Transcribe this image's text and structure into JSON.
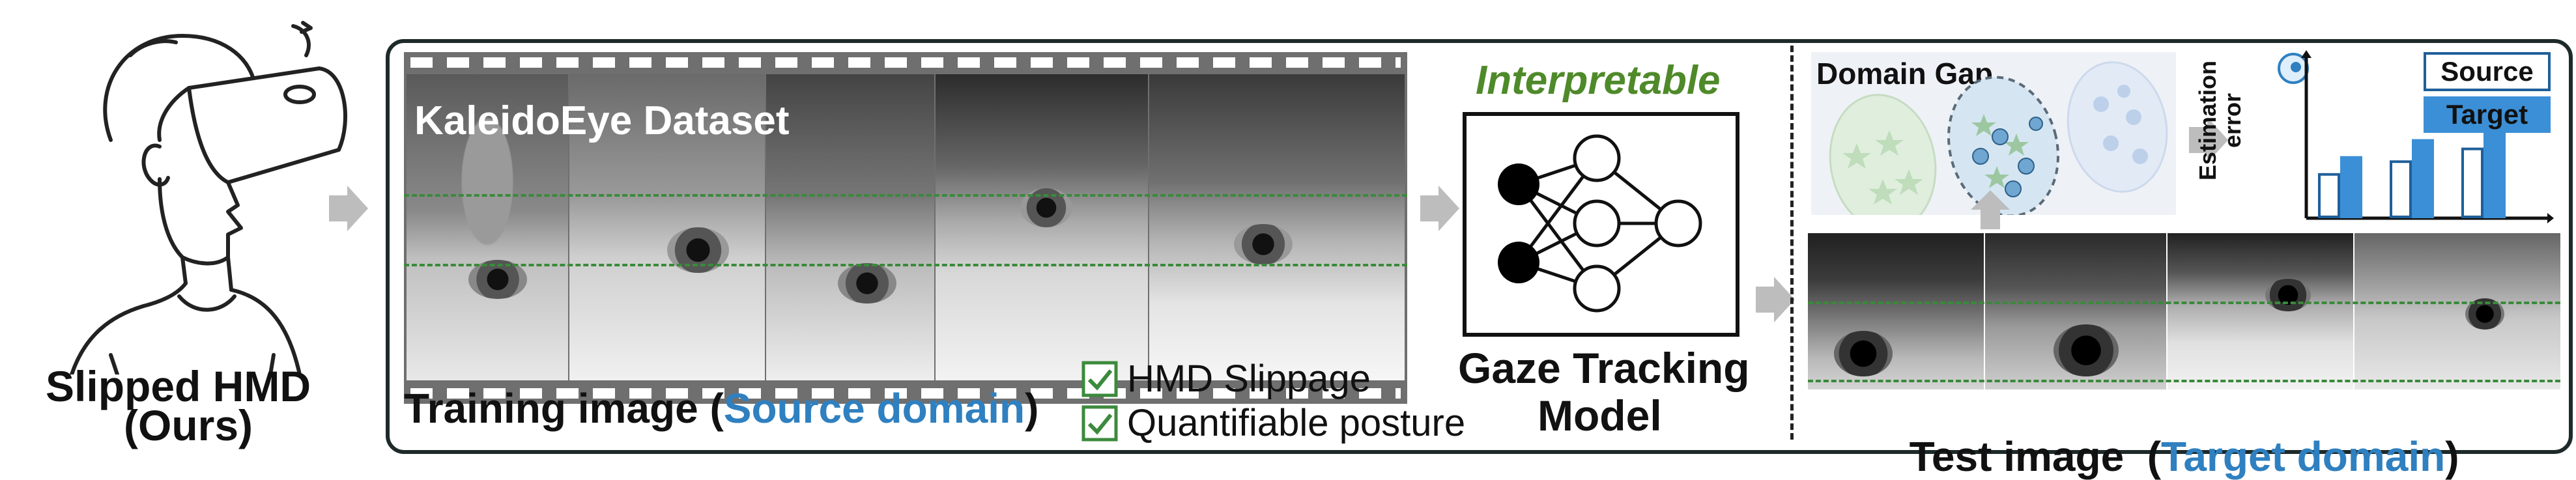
{
  "left": {
    "title_line1": "Slipped HMD",
    "title_line2": "(Ours)",
    "illustration": "person-wearing-vr-headset"
  },
  "training": {
    "dataset_label": "KaleidoEye Dataset",
    "caption_prefix": "Training image (",
    "caption_domain": "Source domain",
    "caption_suffix": ")",
    "checklist": [
      {
        "label": "HMD Slippage",
        "icon": "checkbox-checked-icon"
      },
      {
        "label": "Quantifiable posture",
        "icon": "checkbox-checked-icon"
      }
    ]
  },
  "model": {
    "interpretable": "Interpretable",
    "title_line1": "Gaze Tracking",
    "title_line2": "Model",
    "icon": "neural-network-icon"
  },
  "domain_gap": {
    "title": "Domain Gap"
  },
  "estimation_chart": {
    "ylabel_line1": "Estimation",
    "ylabel_line2": "error",
    "icon": "eye-globe-icon"
  },
  "chart_data": {
    "type": "bar",
    "title": "",
    "xlabel": "",
    "ylabel": "Estimation error",
    "categories": [
      "",
      "",
      ""
    ],
    "series": [
      {
        "name": "Source",
        "values": [
          1.0,
          1.3,
          1.6
        ],
        "color": "#ffffff"
      },
      {
        "name": "Target",
        "values": [
          1.4,
          1.8,
          2.1
        ],
        "color": "#3b8fd6"
      }
    ],
    "legend": "top-right",
    "grid": false
  },
  "test": {
    "caption_prefix": "Test image  (",
    "caption_domain": "Target domain",
    "caption_suffix": ")"
  },
  "colors": {
    "accent_blue": "#2f80c0",
    "accent_green": "#4f8a2a",
    "frame_dark": "#1e2a2a",
    "arrow_gray": "#bdbdbd"
  }
}
